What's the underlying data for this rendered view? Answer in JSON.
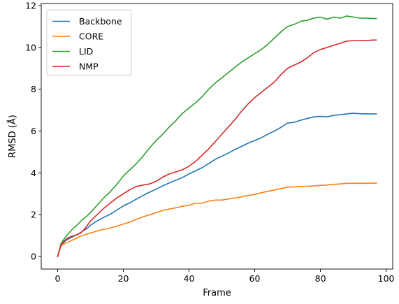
{
  "chart_data": {
    "type": "line",
    "title": "",
    "xlabel": "Frame",
    "ylabel": "RMSD (Å)",
    "xlim": [
      -5,
      102
    ],
    "ylim": [
      -0.6,
      12.1
    ],
    "xticks": [
      0,
      20,
      40,
      60,
      80,
      100
    ],
    "yticks": [
      0,
      2,
      4,
      6,
      8,
      10,
      12
    ],
    "grid": false,
    "legend_position": "top-left",
    "series": [
      {
        "name": "Backbone",
        "color": "#1f77b4",
        "points": [
          [
            0,
            0
          ],
          [
            1,
            0.55
          ],
          [
            2,
            0.7
          ],
          [
            3,
            0.82
          ],
          [
            4,
            0.9
          ],
          [
            5,
            0.98
          ],
          [
            6,
            1.05
          ],
          [
            7,
            1.15
          ],
          [
            8,
            1.25
          ],
          [
            9,
            1.35
          ],
          [
            10,
            1.5
          ],
          [
            12,
            1.7
          ],
          [
            14,
            1.87
          ],
          [
            16,
            2.02
          ],
          [
            18,
            2.22
          ],
          [
            20,
            2.42
          ],
          [
            22,
            2.57
          ],
          [
            24,
            2.75
          ],
          [
            26,
            2.92
          ],
          [
            28,
            3.08
          ],
          [
            30,
            3.22
          ],
          [
            32,
            3.38
          ],
          [
            34,
            3.52
          ],
          [
            36,
            3.65
          ],
          [
            38,
            3.78
          ],
          [
            40,
            3.95
          ],
          [
            42,
            4.1
          ],
          [
            44,
            4.25
          ],
          [
            46,
            4.45
          ],
          [
            48,
            4.65
          ],
          [
            50,
            4.8
          ],
          [
            52,
            4.95
          ],
          [
            54,
            5.12
          ],
          [
            56,
            5.27
          ],
          [
            58,
            5.42
          ],
          [
            60,
            5.55
          ],
          [
            62,
            5.68
          ],
          [
            64,
            5.85
          ],
          [
            66,
            6.0
          ],
          [
            68,
            6.18
          ],
          [
            70,
            6.38
          ],
          [
            72,
            6.42
          ],
          [
            74,
            6.52
          ],
          [
            76,
            6.6
          ],
          [
            78,
            6.68
          ],
          [
            80,
            6.7
          ],
          [
            82,
            6.68
          ],
          [
            84,
            6.75
          ],
          [
            86,
            6.78
          ],
          [
            88,
            6.82
          ],
          [
            90,
            6.85
          ],
          [
            92,
            6.83
          ],
          [
            94,
            6.82
          ],
          [
            96,
            6.82
          ],
          [
            97,
            6.82
          ]
        ]
      },
      {
        "name": "CORE",
        "color": "#ff7f0e",
        "points": [
          [
            0,
            0
          ],
          [
            1,
            0.5
          ],
          [
            2,
            0.62
          ],
          [
            3,
            0.68
          ],
          [
            4,
            0.75
          ],
          [
            5,
            0.82
          ],
          [
            6,
            0.9
          ],
          [
            7,
            0.98
          ],
          [
            8,
            1.02
          ],
          [
            9,
            1.08
          ],
          [
            10,
            1.12
          ],
          [
            12,
            1.22
          ],
          [
            14,
            1.3
          ],
          [
            16,
            1.36
          ],
          [
            18,
            1.45
          ],
          [
            20,
            1.55
          ],
          [
            22,
            1.65
          ],
          [
            24,
            1.78
          ],
          [
            26,
            1.9
          ],
          [
            28,
            2.0
          ],
          [
            30,
            2.1
          ],
          [
            32,
            2.2
          ],
          [
            34,
            2.27
          ],
          [
            36,
            2.33
          ],
          [
            38,
            2.4
          ],
          [
            40,
            2.45
          ],
          [
            42,
            2.55
          ],
          [
            44,
            2.55
          ],
          [
            46,
            2.65
          ],
          [
            48,
            2.7
          ],
          [
            50,
            2.7
          ],
          [
            52,
            2.75
          ],
          [
            54,
            2.8
          ],
          [
            56,
            2.85
          ],
          [
            58,
            2.92
          ],
          [
            60,
            2.97
          ],
          [
            62,
            3.05
          ],
          [
            64,
            3.12
          ],
          [
            66,
            3.18
          ],
          [
            68,
            3.25
          ],
          [
            70,
            3.32
          ],
          [
            72,
            3.33
          ],
          [
            74,
            3.35
          ],
          [
            76,
            3.36
          ],
          [
            78,
            3.38
          ],
          [
            80,
            3.4
          ],
          [
            82,
            3.42
          ],
          [
            84,
            3.45
          ],
          [
            86,
            3.47
          ],
          [
            88,
            3.5
          ],
          [
            90,
            3.5
          ],
          [
            92,
            3.5
          ],
          [
            94,
            3.5
          ],
          [
            96,
            3.51
          ],
          [
            97,
            3.51
          ]
        ]
      },
      {
        "name": "LID",
        "color": "#2ca02c",
        "points": [
          [
            0,
            0
          ],
          [
            1,
            0.6
          ],
          [
            2,
            0.85
          ],
          [
            3,
            1.05
          ],
          [
            4,
            1.22
          ],
          [
            5,
            1.38
          ],
          [
            6,
            1.52
          ],
          [
            7,
            1.68
          ],
          [
            8,
            1.82
          ],
          [
            9,
            1.95
          ],
          [
            10,
            2.1
          ],
          [
            12,
            2.45
          ],
          [
            14,
            2.8
          ],
          [
            16,
            3.1
          ],
          [
            18,
            3.45
          ],
          [
            20,
            3.85
          ],
          [
            22,
            4.15
          ],
          [
            24,
            4.45
          ],
          [
            26,
            4.8
          ],
          [
            28,
            5.2
          ],
          [
            30,
            5.55
          ],
          [
            32,
            5.85
          ],
          [
            34,
            6.2
          ],
          [
            36,
            6.5
          ],
          [
            38,
            6.85
          ],
          [
            40,
            7.1
          ],
          [
            42,
            7.35
          ],
          [
            44,
            7.65
          ],
          [
            46,
            8.0
          ],
          [
            48,
            8.3
          ],
          [
            50,
            8.55
          ],
          [
            52,
            8.8
          ],
          [
            54,
            9.05
          ],
          [
            56,
            9.3
          ],
          [
            58,
            9.5
          ],
          [
            60,
            9.7
          ],
          [
            62,
            9.9
          ],
          [
            64,
            10.15
          ],
          [
            66,
            10.45
          ],
          [
            68,
            10.75
          ],
          [
            70,
            11.0
          ],
          [
            72,
            11.1
          ],
          [
            74,
            11.25
          ],
          [
            76,
            11.3
          ],
          [
            78,
            11.4
          ],
          [
            80,
            11.45
          ],
          [
            82,
            11.35
          ],
          [
            84,
            11.45
          ],
          [
            86,
            11.4
          ],
          [
            88,
            11.5
          ],
          [
            90,
            11.45
          ],
          [
            92,
            11.4
          ],
          [
            94,
            11.4
          ],
          [
            96,
            11.38
          ],
          [
            97,
            11.38
          ]
        ]
      },
      {
        "name": "NMP",
        "color": "#d62728",
        "points": [
          [
            0,
            0
          ],
          [
            1,
            0.55
          ],
          [
            2,
            0.75
          ],
          [
            3,
            0.88
          ],
          [
            4,
            0.95
          ],
          [
            5,
            1.0
          ],
          [
            6,
            1.05
          ],
          [
            7,
            1.12
          ],
          [
            8,
            1.28
          ],
          [
            9,
            1.48
          ],
          [
            10,
            1.7
          ],
          [
            12,
            2.0
          ],
          [
            14,
            2.3
          ],
          [
            16,
            2.55
          ],
          [
            18,
            2.8
          ],
          [
            20,
            3.0
          ],
          [
            22,
            3.2
          ],
          [
            24,
            3.35
          ],
          [
            26,
            3.42
          ],
          [
            28,
            3.47
          ],
          [
            30,
            3.6
          ],
          [
            32,
            3.8
          ],
          [
            34,
            3.95
          ],
          [
            36,
            4.05
          ],
          [
            38,
            4.15
          ],
          [
            40,
            4.32
          ],
          [
            42,
            4.55
          ],
          [
            44,
            4.85
          ],
          [
            46,
            5.15
          ],
          [
            48,
            5.5
          ],
          [
            50,
            5.85
          ],
          [
            52,
            6.2
          ],
          [
            54,
            6.55
          ],
          [
            56,
            6.95
          ],
          [
            58,
            7.3
          ],
          [
            60,
            7.6
          ],
          [
            62,
            7.85
          ],
          [
            64,
            8.1
          ],
          [
            66,
            8.35
          ],
          [
            68,
            8.7
          ],
          [
            70,
            9.0
          ],
          [
            72,
            9.15
          ],
          [
            74,
            9.3
          ],
          [
            76,
            9.5
          ],
          [
            78,
            9.75
          ],
          [
            80,
            9.9
          ],
          [
            82,
            10.0
          ],
          [
            84,
            10.1
          ],
          [
            86,
            10.2
          ],
          [
            88,
            10.3
          ],
          [
            90,
            10.32
          ],
          [
            92,
            10.32
          ],
          [
            94,
            10.33
          ],
          [
            96,
            10.35
          ],
          [
            97,
            10.35
          ]
        ]
      }
    ]
  }
}
